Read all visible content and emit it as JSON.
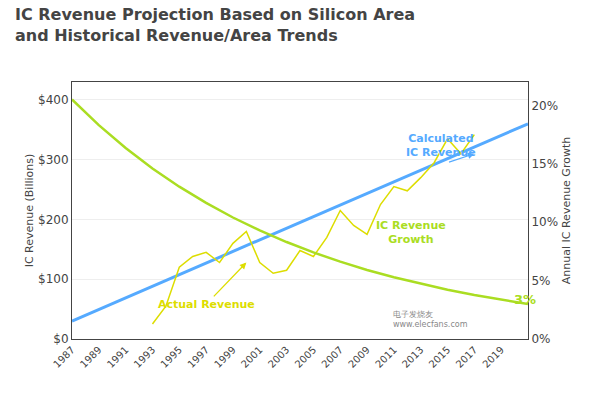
{
  "chart_data": {
    "type": "line",
    "title": "IC Revenue Projection Based on Silicon Area\nand Historical Revenue/Area Trends",
    "ylabel": "IC Revenue (Billions)",
    "y2label": "Annual IC Revenue Growth",
    "xlim": [
      1987,
      2021
    ],
    "xticks": [
      1987,
      1989,
      1991,
      1993,
      1995,
      1997,
      1999,
      2001,
      2003,
      2005,
      2007,
      2009,
      2011,
      2013,
      2015,
      2017,
      2019
    ],
    "ylim": [
      0,
      430
    ],
    "yticks": [
      {
        "value": 0,
        "label": "$0"
      },
      {
        "value": 100,
        "label": "$100"
      },
      {
        "value": 200,
        "label": "$200"
      },
      {
        "value": 300,
        "label": "$300"
      },
      {
        "value": 400,
        "label": "$400"
      }
    ],
    "y2lim": [
      0,
      0.22
    ],
    "y2ticks": [
      {
        "value": 0,
        "label": "0%"
      },
      {
        "value": 0.05,
        "label": "5%"
      },
      {
        "value": 0.1,
        "label": "10%"
      },
      {
        "value": 0.15,
        "label": "15%"
      },
      {
        "value": 0.2,
        "label": "20%"
      }
    ],
    "grid": true,
    "series": [
      {
        "axis": "y2",
        "color": "#aadd22",
        "x": [
          1987,
          1989,
          1991,
          1993,
          1995,
          1997,
          1999,
          2001,
          2003,
          2005,
          2007,
          2009,
          2011,
          2013,
          2015,
          2017,
          2019,
          2021
        ],
        "values": [
          0.205,
          0.1831,
          0.1635,
          0.146,
          0.1304,
          0.1165,
          0.104,
          0.0929,
          0.083,
          0.0741,
          0.0662,
          0.0591,
          0.0528,
          0.0472,
          0.0421,
          0.0376,
          0.0336,
          0.03
        ]
      },
      {
        "color": "#55aaff",
        "x": [
          1987,
          2021
        ],
        "values": [
          30,
          360
        ]
      },
      {
        "color": "#dddd00",
        "x": [
          1993,
          1994,
          1995,
          1996,
          1997,
          1998,
          1999,
          2000,
          2001,
          2002,
          2003,
          2004,
          2005,
          2006,
          2007,
          2008,
          2009,
          2010,
          2011,
          2012,
          2013,
          2014,
          2015,
          2016,
          2017
        ],
        "values": [
          25,
          55,
          120,
          138,
          145,
          128,
          160,
          180,
          128,
          110,
          115,
          148,
          138,
          170,
          215,
          190,
          175,
          225,
          255,
          248,
          270,
          295,
          335,
          310,
          342
        ]
      }
    ],
    "annotations": [
      {
        "text": "Calculated\nIC Revenue",
        "color": "#55aaff",
        "x": 2014.5,
        "y": 298,
        "arrow_from": [
          2015,
          295
        ],
        "arrow_to": [
          2017,
          310
        ]
      },
      {
        "text": "Actual Revenue",
        "color": "#dddd00",
        "x": 1997,
        "y": 58,
        "arrow_to": [
          2000,
          128
        ]
      },
      {
        "text": "IC Revenue\nGrowth",
        "color": "#aadd22",
        "x": 2009.5,
        "y": 0.078,
        "axis": "y2"
      },
      {
        "text": "3%",
        "color": "#aadd22",
        "x": 2019.8,
        "y": 0.026,
        "axis": "y2"
      }
    ],
    "watermark": "电子发烧友\nwww.elecfans.com"
  }
}
